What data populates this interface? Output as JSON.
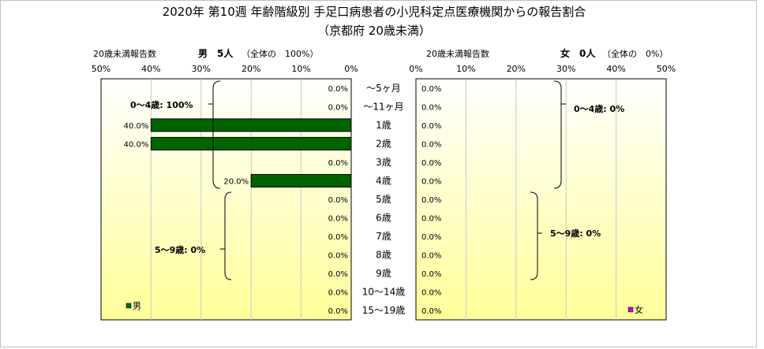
{
  "title_line1": "2020年 第10週 年齢階級別 手足口病患者の小児科定点医療機関からの報告割合",
  "title_line2": "（京都府 20歳未満）",
  "left_header": {
    "count_label": "20歳未満報告数",
    "sex_summary": "男　5人",
    "share_summary": "（全体の　100%）"
  },
  "right_header": {
    "count_label": "20歳未満報告数",
    "sex_summary": "女　0人",
    "share_summary": "（全体の　0%）"
  },
  "colors": {
    "male_bar": "#006400",
    "female_marker": "#cc00cc",
    "plot_top": "#ffffff",
    "plot_bottom": "#ffff99"
  },
  "chart_data": {
    "type": "bar",
    "orientation": "horizontal-butterfly",
    "categories": [
      "～5ヶ月",
      "～11ヶ月",
      "1歳",
      "2歳",
      "3歳",
      "4歳",
      "5歳",
      "6歳",
      "7歳",
      "8歳",
      "9歳",
      "10～14歳",
      "15～19歳"
    ],
    "axis_ticks": [
      "50%",
      "40%",
      "30%",
      "20%",
      "10%",
      "0%"
    ],
    "axis_ticks_right": [
      "0%",
      "10%",
      "20%",
      "30%",
      "40%",
      "50%"
    ],
    "xlim": [
      0,
      50
    ],
    "grid": true,
    "series": [
      {
        "name": "男",
        "values": [
          0,
          0,
          40,
          40,
          0,
          20,
          0,
          0,
          0,
          0,
          0,
          0,
          0
        ],
        "labels": [
          "0.0%",
          "0.0%",
          "40.0%",
          "40.0%",
          "0.0%",
          "20.0%",
          "0.0%",
          "0.0%",
          "0.0%",
          "0.0%",
          "0.0%",
          "0.0%",
          "0.0%"
        ]
      },
      {
        "name": "女",
        "values": [
          0,
          0,
          0,
          0,
          0,
          0,
          0,
          0,
          0,
          0,
          0,
          0,
          0
        ],
        "labels": [
          "0.0%",
          "0.0%",
          "0.0%",
          "0.0%",
          "0.0%",
          "0.0%",
          "0.0%",
          "0.0%",
          "0.0%",
          "0.0%",
          "0.0%",
          "0.0%",
          "0.0%"
        ]
      }
    ],
    "annotations": {
      "male_0_4": "0～4歳: 100%",
      "male_5_9": "5～9歳: 0%",
      "female_0_4": "0～4歳: 0%",
      "female_5_9": "5～9歳: 0%"
    }
  }
}
